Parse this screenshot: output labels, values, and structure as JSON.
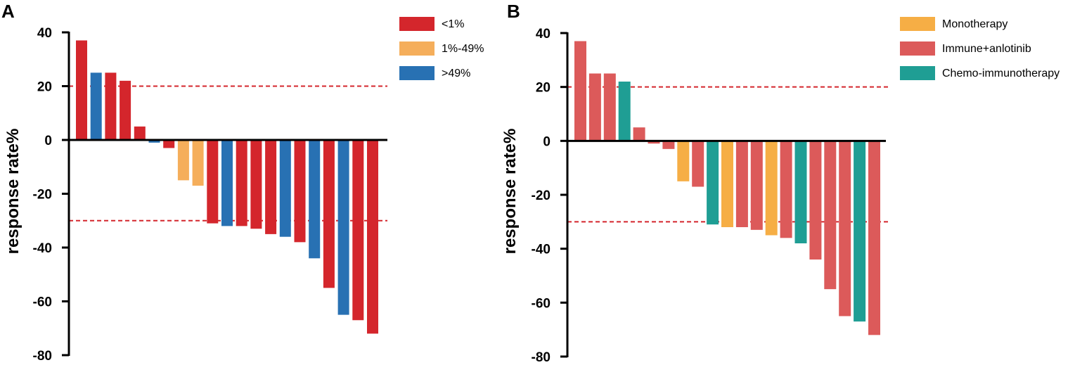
{
  "chart_data": [
    {
      "panel": "A",
      "type": "bar",
      "subtype": "waterfall",
      "ylabel": "response rate%",
      "ylim": [
        -80,
        40
      ],
      "yticks": [
        40,
        20,
        0,
        -20,
        -40,
        -60,
        -80
      ],
      "reference_lines": [
        20,
        -30
      ],
      "legend": [
        {
          "label": "<1%",
          "color": "#D4262C"
        },
        {
          "label": "1%-49%",
          "color": "#F5AE5B"
        },
        {
          "label": ">49%",
          "color": "#2871B3"
        }
      ],
      "values": [
        37,
        25,
        25,
        22,
        5,
        -1,
        -3,
        -15,
        -17,
        -31,
        -32,
        -32,
        -33,
        -35,
        -36,
        -38,
        -44,
        -55,
        -65,
        -67,
        -72
      ],
      "groups": [
        0,
        2,
        0,
        0,
        0,
        2,
        0,
        1,
        1,
        0,
        2,
        0,
        0,
        0,
        2,
        0,
        2,
        0,
        2,
        0,
        0
      ]
    },
    {
      "panel": "B",
      "type": "bar",
      "subtype": "waterfall",
      "ylabel": "response rate%",
      "ylim": [
        -80,
        40
      ],
      "yticks": [
        40,
        20,
        0,
        -20,
        -40,
        -60,
        -80
      ],
      "reference_lines": [
        20,
        -30
      ],
      "legend": [
        {
          "label": "Monotherapy",
          "color": "#F6AE45"
        },
        {
          "label": "Immune+anlotinib",
          "color": "#DC5A5A"
        },
        {
          "label": "Chemo-immunotherapy",
          "color": "#1F9E94"
        }
      ],
      "values": [
        37,
        25,
        25,
        22,
        5,
        -1,
        -3,
        -15,
        -17,
        -31,
        -32,
        -32,
        -33,
        -35,
        -36,
        -38,
        -44,
        -55,
        -65,
        -67,
        -72
      ],
      "groups": [
        1,
        1,
        1,
        2,
        1,
        1,
        1,
        0,
        1,
        2,
        0,
        1,
        1,
        0,
        1,
        2,
        1,
        1,
        1,
        2,
        1
      ]
    }
  ]
}
